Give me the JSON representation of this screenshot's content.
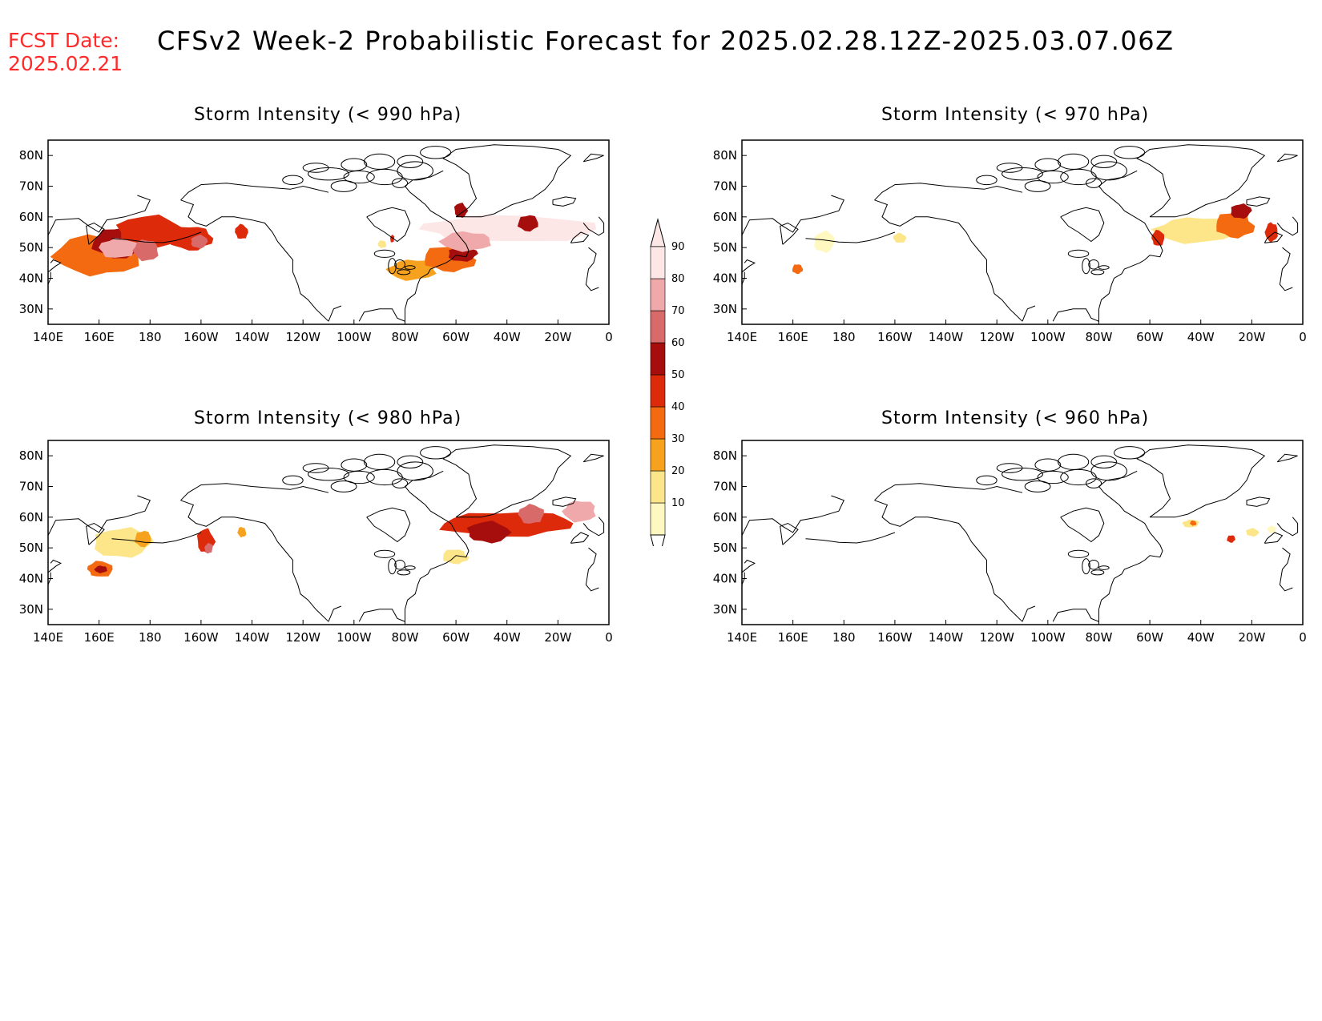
{
  "header": {
    "fcst_label": "FCST Date:",
    "fcst_date": "2025.02.21",
    "title": "CFSv2 Week-2 Probabilistic Forecast for 2025.02.28.12Z-2025.03.07.06Z"
  },
  "colors": {
    "fcst": "#ff2a2a",
    "levels": [
      "#fff8c0",
      "#fde68a",
      "#f6a21e",
      "#f46a10",
      "#dd2a0a",
      "#a60d0d",
      "#d86a6a",
      "#f0a9aa",
      "#fce6e6"
    ]
  },
  "colorbar": {
    "labels": [
      "10",
      "20",
      "30",
      "40",
      "50",
      "60",
      "70",
      "80",
      "90"
    ]
  },
  "axes": {
    "lon_labels": [
      "140E",
      "160E",
      "180",
      "160W",
      "140W",
      "120W",
      "100W",
      "80W",
      "60W",
      "40W",
      "20W",
      "0"
    ],
    "lat_labels": [
      "80N",
      "70N",
      "60N",
      "50N",
      "40N",
      "30N"
    ]
  },
  "panels": [
    {
      "title": "Storm Intensity (< 990 hPa)",
      "blobs": [
        {
          "lon": 160,
          "lat": 47,
          "rlon": 20,
          "rlat": 8,
          "level": 4
        },
        {
          "lon": 168,
          "lat": 52,
          "rlon": 13,
          "rlat": 6,
          "level": 6
        },
        {
          "lon": 180,
          "lat": 55,
          "rlon": 16,
          "rlat": 6,
          "level": 5
        },
        {
          "lon": 168,
          "lat": 50,
          "rlon": 9,
          "rlat": 4,
          "level": 8
        },
        {
          "lon": 178,
          "lat": 49,
          "rlon": 6,
          "rlat": 4,
          "level": 7
        },
        {
          "lon": 197,
          "lat": 53,
          "rlon": 10,
          "rlat": 5,
          "level": 5
        },
        {
          "lon": 199,
          "lat": 52,
          "rlon": 4,
          "rlat": 2.5,
          "level": 7
        },
        {
          "lon": 216,
          "lat": 55,
          "rlon": 3,
          "rlat": 3,
          "level": 5
        },
        {
          "lon": 283,
          "lat": 43,
          "rlon": 12,
          "rlat": 4,
          "level": 3
        },
        {
          "lon": 297,
          "lat": 46,
          "rlon": 12,
          "rlat": 5,
          "level": 4
        },
        {
          "lon": 303,
          "lat": 48,
          "rlon": 7,
          "rlat": 3,
          "level": 6
        },
        {
          "lon": 318,
          "lat": 56,
          "rlon": 42,
          "rlat": 5,
          "level": 9
        },
        {
          "lon": 305,
          "lat": 52,
          "rlon": 12,
          "rlat": 4,
          "level": 8
        },
        {
          "lon": 328,
          "lat": 58,
          "rlon": 5,
          "rlat": 3,
          "level": 6
        },
        {
          "lon": 302,
          "lat": 62,
          "rlon": 3,
          "rlat": 3,
          "level": 6
        },
        {
          "lon": 275,
          "lat": 53,
          "rlon": 1,
          "rlat": 1.5,
          "level": 5
        },
        {
          "lon": 271,
          "lat": 51,
          "rlon": 2,
          "rlat": 1.5,
          "level": 2
        }
      ]
    },
    {
      "title": "Storm Intensity (< 970 hPa)",
      "blobs": [
        {
          "lon": 162,
          "lat": 43,
          "rlon": 2.5,
          "rlat": 2,
          "level": 4
        },
        {
          "lon": 172,
          "lat": 52,
          "rlon": 5,
          "rlat": 4,
          "level": 1
        },
        {
          "lon": 202,
          "lat": 53,
          "rlon": 3,
          "rlat": 2,
          "level": 2
        },
        {
          "lon": 318,
          "lat": 56,
          "rlon": 20,
          "rlat": 5,
          "level": 2
        },
        {
          "lon": 333,
          "lat": 57,
          "rlon": 9,
          "rlat": 5,
          "level": 4
        },
        {
          "lon": 336,
          "lat": 62,
          "rlon": 5,
          "rlat": 3,
          "level": 6
        },
        {
          "lon": 303,
          "lat": 53,
          "rlon": 3,
          "rlat": 3,
          "level": 5
        },
        {
          "lon": 348,
          "lat": 55,
          "rlon": 3,
          "rlat": 4,
          "level": 5
        }
      ]
    },
    {
      "title": "Storm Intensity (< 980 hPa)",
      "blobs": [
        {
          "lon": 170,
          "lat": 52,
          "rlon": 14,
          "rlat": 6,
          "level": 2
        },
        {
          "lon": 160,
          "lat": 43,
          "rlon": 6,
          "rlat": 3,
          "level": 4
        },
        {
          "lon": 161,
          "lat": 43,
          "rlon": 3,
          "rlat": 1.5,
          "level": 6
        },
        {
          "lon": 177,
          "lat": 53,
          "rlon": 4,
          "rlat": 3,
          "level": 3
        },
        {
          "lon": 202,
          "lat": 52,
          "rlon": 4,
          "rlat": 5,
          "level": 5
        },
        {
          "lon": 203,
          "lat": 50,
          "rlon": 2,
          "rlat": 2,
          "level": 7
        },
        {
          "lon": 216,
          "lat": 55,
          "rlon": 2,
          "rlat": 2,
          "level": 3
        },
        {
          "lon": 322,
          "lat": 58,
          "rlon": 32,
          "rlat": 5,
          "level": 5
        },
        {
          "lon": 312,
          "lat": 55,
          "rlon": 10,
          "rlat": 4,
          "level": 6
        },
        {
          "lon": 330,
          "lat": 61,
          "rlon": 6,
          "rlat": 4,
          "level": 7
        },
        {
          "lon": 348,
          "lat": 62,
          "rlon": 8,
          "rlat": 4,
          "level": 8
        },
        {
          "lon": 300,
          "lat": 47,
          "rlon": 6,
          "rlat": 3,
          "level": 2
        }
      ]
    },
    {
      "title": "Storm Intensity (< 960 hPa)",
      "blobs": [
        {
          "lon": 316,
          "lat": 58,
          "rlon": 4,
          "rlat": 1.5,
          "level": 2
        },
        {
          "lon": 317,
          "lat": 58,
          "rlon": 1.5,
          "rlat": 1,
          "level": 4
        },
        {
          "lon": 332,
          "lat": 53,
          "rlon": 2,
          "rlat": 1.5,
          "level": 5
        },
        {
          "lon": 340,
          "lat": 55,
          "rlon": 3,
          "rlat": 1.5,
          "level": 2
        },
        {
          "lon": 348,
          "lat": 56,
          "rlon": 2,
          "rlat": 1.5,
          "level": 1
        }
      ]
    }
  ]
}
